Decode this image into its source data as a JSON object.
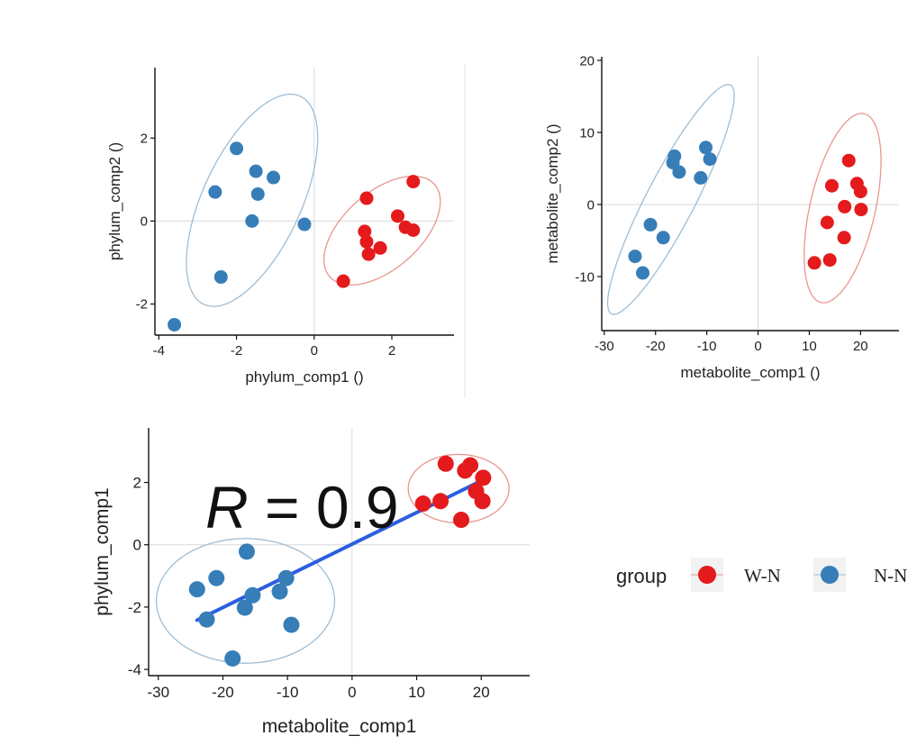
{
  "group_colors": {
    "W-N": "#e41a1c",
    "N-N": "#377eb8"
  },
  "ellipse_colors": {
    "W-N": "#e9968f",
    "N-N": "#9fbdd3"
  },
  "regression_color": "#2b5ee0",
  "legend": {
    "title": "group",
    "items": [
      {
        "label": "W-N",
        "group": "W-N"
      },
      {
        "label": "N-N",
        "group": "N-N"
      }
    ]
  },
  "chart_data": [
    {
      "id": "phylum",
      "type": "scatter",
      "xlabel": "phylum_comp1 ()",
      "ylabel": "phylum_comp2 ()",
      "xlim": [
        -4.1,
        3.6
      ],
      "ylim": [
        -2.75,
        3.7
      ],
      "xticks": [
        -4,
        -2,
        0,
        2
      ],
      "yticks": [
        -2,
        0,
        2
      ],
      "series": [
        {
          "name": "N-N",
          "points": [
            [
              -2.0,
              1.75
            ],
            [
              -1.5,
              1.2
            ],
            [
              -1.05,
              1.05
            ],
            [
              -2.55,
              0.7
            ],
            [
              -1.45,
              0.65
            ],
            [
              -1.6,
              0.0
            ],
            [
              -0.25,
              -0.08
            ],
            [
              -2.4,
              -1.35
            ],
            [
              -3.6,
              -2.5
            ]
          ],
          "ellipse": {
            "cx": -1.6,
            "cy": 0.5,
            "rx": 2.8,
            "ry": 1.25,
            "angle_deg": 63
          }
        },
        {
          "name": "W-N",
          "points": [
            [
              1.35,
              0.55
            ],
            [
              2.55,
              0.95
            ],
            [
              2.15,
              0.12
            ],
            [
              2.35,
              -0.15
            ],
            [
              2.55,
              -0.22
            ],
            [
              1.3,
              -0.25
            ],
            [
              1.35,
              -0.5
            ],
            [
              1.7,
              -0.65
            ],
            [
              1.4,
              -0.8
            ],
            [
              0.75,
              -1.45
            ]
          ],
          "ellipse": {
            "cx": 1.75,
            "cy": -0.23,
            "rx": 1.75,
            "ry": 0.95,
            "angle_deg": 38
          }
        }
      ]
    },
    {
      "id": "metabolite",
      "type": "scatter",
      "xlabel": "metabolite_comp1 ()",
      "ylabel": "metabolite_comp2 ()",
      "xlim": [
        -30.5,
        27.5
      ],
      "ylim": [
        -17.5,
        20.5
      ],
      "xticks": [
        -30,
        -20,
        -10,
        0,
        10,
        20
      ],
      "yticks": [
        -10,
        0,
        10,
        20
      ],
      "series": [
        {
          "name": "N-N",
          "points": [
            [
              -16.3,
              6.7
            ],
            [
              -16.6,
              5.8
            ],
            [
              -15.4,
              4.5
            ],
            [
              -10.2,
              7.9
            ],
            [
              -9.4,
              6.3
            ],
            [
              -11.2,
              3.7
            ],
            [
              -21.0,
              -2.8
            ],
            [
              -18.5,
              -4.6
            ],
            [
              -24.0,
              -7.2
            ],
            [
              -22.5,
              -9.5
            ]
          ],
          "ellipse": {
            "cx": -17.0,
            "cy": 0.7,
            "rx": 19.7,
            "ry": 4.3,
            "angle_deg": 53
          }
        },
        {
          "name": "W-N",
          "points": [
            [
              17.7,
              6.1
            ],
            [
              14.4,
              2.6
            ],
            [
              19.3,
              2.9
            ],
            [
              20.0,
              1.8
            ],
            [
              16.9,
              -0.3
            ],
            [
              20.1,
              -0.7
            ],
            [
              13.5,
              -2.5
            ],
            [
              16.8,
              -4.6
            ],
            [
              14.0,
              -7.7
            ],
            [
              11.0,
              -8.1
            ]
          ],
          "ellipse": {
            "cx": 16.5,
            "cy": -0.5,
            "rx": 13.8,
            "ry": 6.2,
            "angle_deg": 70
          }
        }
      ]
    },
    {
      "id": "correlation",
      "type": "scatter",
      "xlabel": "metabolite_comp1",
      "ylabel": "phylum_comp1",
      "xlim": [
        -31.5,
        27.5
      ],
      "ylim": [
        -4.2,
        3.75
      ],
      "xticks": [
        -30,
        -20,
        -10,
        0,
        10,
        20
      ],
      "yticks": [
        -4,
        -2,
        0,
        2
      ],
      "annotation": {
        "symbol": "R",
        "text": " = 0.9"
      },
      "regression": {
        "x": [
          -24,
          20
        ],
        "y": [
          -2.42,
          2.05
        ]
      },
      "series": [
        {
          "name": "W-N",
          "points": [
            [
              14.5,
              2.6
            ],
            [
              17.5,
              2.38
            ],
            [
              18.3,
              2.55
            ],
            [
              20.3,
              2.15
            ],
            [
              19.2,
              1.72
            ],
            [
              20.2,
              1.4
            ],
            [
              13.7,
              1.4
            ],
            [
              11.0,
              1.32
            ],
            [
              16.9,
              0.8
            ]
          ],
          "ellipse": {
            "cx": 16.5,
            "cy": 1.8,
            "rx": 7.8,
            "ry": 1.1,
            "angle_deg": 0
          }
        },
        {
          "name": "N-N",
          "points": [
            [
              -16.3,
              -0.22
            ],
            [
              -21.0,
              -1.07
            ],
            [
              -10.2,
              -1.07
            ],
            [
              -24.0,
              -1.43
            ],
            [
              -15.4,
              -1.62
            ],
            [
              -11.2,
              -1.5
            ],
            [
              -16.6,
              -2.02
            ],
            [
              -22.5,
              -2.4
            ],
            [
              -9.4,
              -2.57
            ],
            [
              -18.5,
              -3.65
            ]
          ],
          "ellipse": {
            "cx": -16.5,
            "cy": -1.8,
            "rx": 13.8,
            "ry": 2.0,
            "angle_deg": 0
          }
        }
      ]
    }
  ]
}
